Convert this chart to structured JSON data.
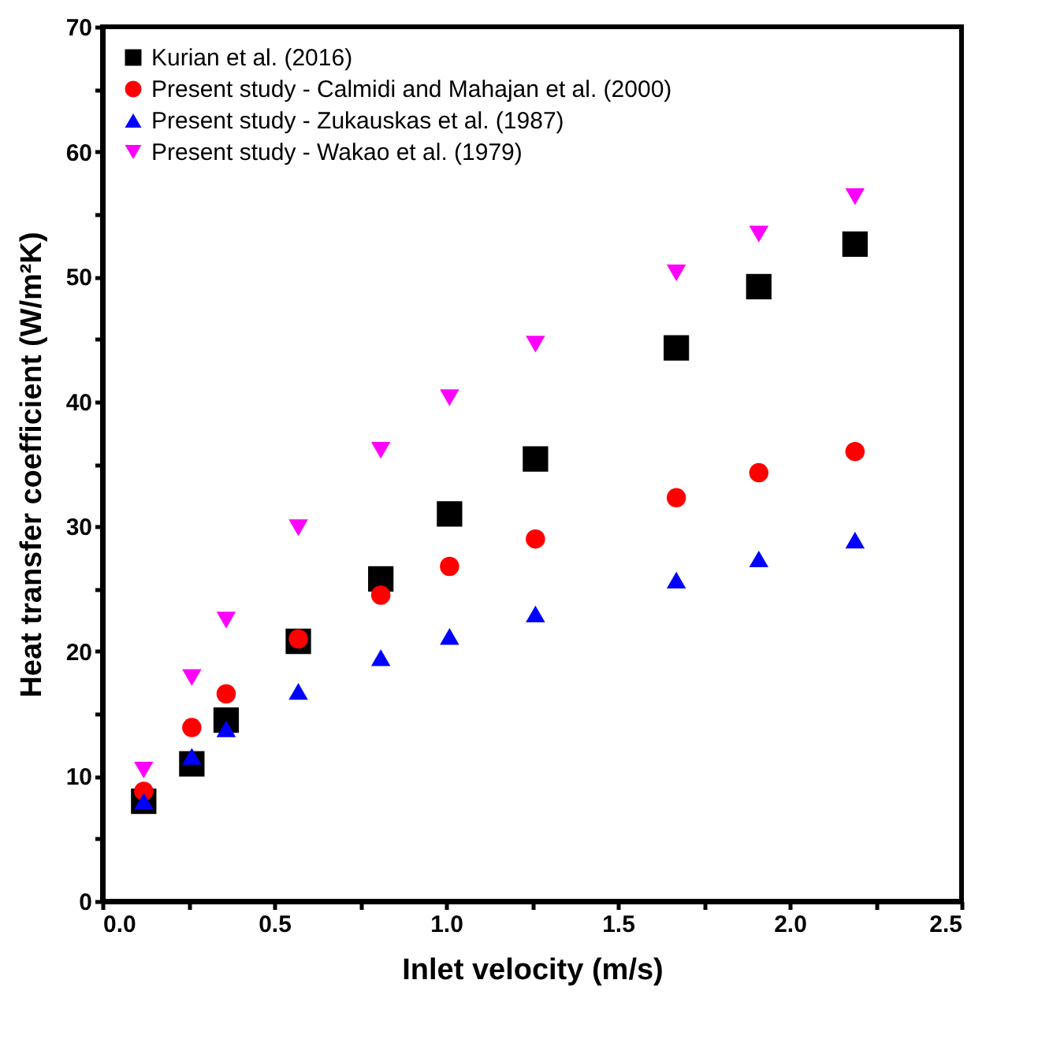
{
  "chart_data": {
    "type": "scatter",
    "xlabel": "Inlet velocity (m/s)",
    "ylabel": "Heat transfer coefficient (W/m²K)",
    "x": [
      0.12,
      0.26,
      0.36,
      0.57,
      0.81,
      1.01,
      1.26,
      1.67,
      1.91,
      2.19
    ],
    "series": [
      {
        "name": "Kurian et al. (2016)",
        "color": "#000000",
        "marker": "square",
        "values": [
          8.0,
          11.0,
          14.5,
          20.8,
          25.8,
          31.0,
          35.4,
          44.3,
          49.2,
          52.6
        ]
      },
      {
        "name": "Present study - Calmidi and Mahajan et al. (2000)",
        "color": "#ff0000",
        "marker": "circle",
        "values": [
          8.8,
          13.9,
          16.6,
          21.0,
          24.5,
          26.8,
          29.0,
          32.3,
          34.3,
          36.0
        ]
      },
      {
        "name": "Present study - Zukauskas et al. (1987)",
        "color": "#0000ff",
        "marker": "triangle",
        "values": [
          8.0,
          11.6,
          13.8,
          16.8,
          19.5,
          21.2,
          23.0,
          25.7,
          27.4,
          28.9
        ]
      },
      {
        "name": "Present study - Wakao et al. (1979)",
        "color": "#ff00ff",
        "marker": "triangle-down",
        "values": [
          10.5,
          17.9,
          22.5,
          29.9,
          36.1,
          40.3,
          44.6,
          50.3,
          53.4,
          56.4
        ]
      }
    ],
    "xlim": [
      0,
      2.5
    ],
    "xticks": [
      {
        "value": 0,
        "label": "0.0"
      },
      {
        "value": 0.25,
        "label": null
      },
      0.5,
      {
        "value": 0.75,
        "label": null
      },
      {
        "value": 1,
        "label": "1.0"
      },
      {
        "value": 1.25,
        "label": null
      },
      1.5,
      {
        "value": 1.75,
        "label": null
      },
      {
        "value": 2,
        "label": "2.0"
      },
      {
        "value": 2.25,
        "label": null
      },
      2.5
    ],
    "ylim": [
      0,
      70
    ],
    "yticks": [
      0,
      {
        "value": 5,
        "label": null
      },
      10,
      {
        "value": 15,
        "label": null
      },
      20,
      {
        "value": 25,
        "label": null
      },
      30,
      {
        "value": 35,
        "label": null
      },
      40,
      {
        "value": 45,
        "label": null
      },
      50,
      {
        "value": 55,
        "label": null
      },
      60,
      {
        "value": 65,
        "label": null
      },
      70
    ],
    "grid": false,
    "legend": "top left"
  }
}
